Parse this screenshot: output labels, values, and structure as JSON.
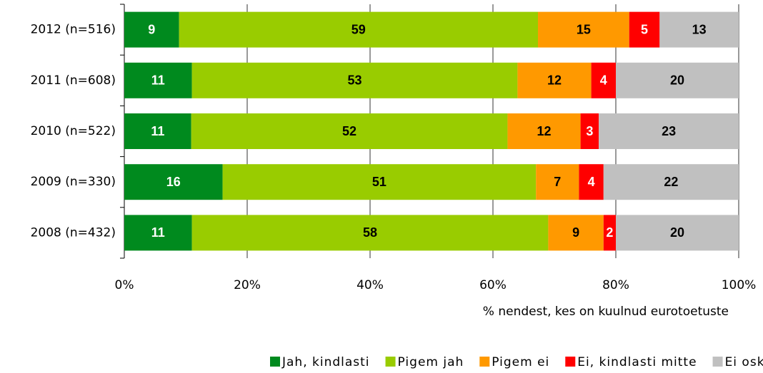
{
  "chart_data": {
    "type": "stacked_bar_horizontal",
    "stacking": "percent",
    "categories": [
      "2012 (n=516)",
      "2011 (n=608)",
      "2010 (n=522)",
      "2009 (n=330)",
      "2008 (n=432)"
    ],
    "series": [
      {
        "name": "Jah, kindlasti",
        "color": "#008a1e",
        "label_color": "#ffffff",
        "values": [
          9,
          11,
          11,
          16,
          11
        ]
      },
      {
        "name": "Pigem jah",
        "color": "#99cc00",
        "label_color": "#000000",
        "values": [
          59,
          53,
          52,
          51,
          58
        ]
      },
      {
        "name": "Pigem ei",
        "color": "#ff9900",
        "label_color": "#000000",
        "values": [
          15,
          12,
          12,
          7,
          9
        ]
      },
      {
        "name": "Ei, kindlasti mitte",
        "color": "#ff0000",
        "label_color": "#ffffff",
        "values": [
          5,
          4,
          3,
          4,
          2
        ]
      },
      {
        "name": "Ei oska öelda",
        "color": "#c0c0c0",
        "label_color": "#000000",
        "values": [
          13,
          20,
          23,
          22,
          20
        ]
      }
    ],
    "xlim": [
      0,
      100
    ],
    "xticks": [
      {
        "value": 0,
        "label": "0%"
      },
      {
        "value": 20,
        "label": "20%"
      },
      {
        "value": 40,
        "label": "40%"
      },
      {
        "value": 60,
        "label": "60%"
      },
      {
        "value": 80,
        "label": "80%"
      },
      {
        "value": 100,
        "label": "100%"
      }
    ],
    "x_label": "% nendest, kes on kuulnud eurotoetuste",
    "grid": true,
    "legend": "bottom"
  }
}
